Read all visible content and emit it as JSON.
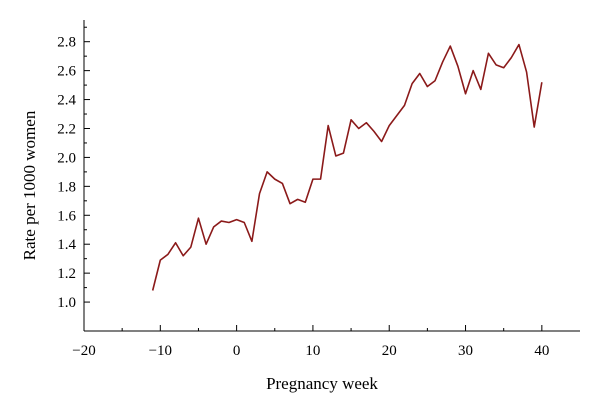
{
  "chart_data": {
    "type": "line",
    "title": "",
    "xlabel": "Pregnancy week",
    "ylabel": "Rate per 1000 women",
    "xlim": [
      -20,
      45
    ],
    "ylim": [
      0.8,
      2.95
    ],
    "x_ticks": [
      -20,
      -10,
      0,
      10,
      20,
      30,
      40
    ],
    "x_tick_labels": [
      "−20",
      "−10",
      "0",
      "10",
      "20",
      "30",
      "40"
    ],
    "y_ticks": [
      1.0,
      1.2,
      1.4,
      1.6,
      1.8,
      2.0,
      2.2,
      2.4,
      2.6,
      2.8
    ],
    "y_tick_labels": [
      "1.0",
      "1.2",
      "1.4",
      "1.6",
      "1.8",
      "2.0",
      "2.2",
      "2.4",
      "2.6",
      "2.8"
    ],
    "grid": false,
    "series": [
      {
        "color": "#8b1a1a",
        "x": [
          -11,
          -10,
          -9,
          -8,
          -7,
          -6,
          -5,
          -4,
          -3,
          -2,
          -1,
          0,
          1,
          2,
          3,
          4,
          5,
          6,
          7,
          8,
          9,
          10,
          11,
          12,
          13,
          14,
          15,
          16,
          17,
          18,
          19,
          20,
          21,
          22,
          23,
          24,
          25,
          26,
          27,
          28,
          29,
          30,
          31,
          32,
          33,
          34,
          35,
          36,
          37,
          38,
          39,
          40
        ],
        "y": [
          1.08,
          1.29,
          1.33,
          1.41,
          1.32,
          1.38,
          1.58,
          1.4,
          1.52,
          1.56,
          1.55,
          1.57,
          1.55,
          1.42,
          1.75,
          1.9,
          1.85,
          1.82,
          1.68,
          1.71,
          1.69,
          1.85,
          1.85,
          2.22,
          2.01,
          2.03,
          2.26,
          2.2,
          2.24,
          2.18,
          2.11,
          2.22,
          2.29,
          2.36,
          2.51,
          2.58,
          2.49,
          2.53,
          2.66,
          2.77,
          2.63,
          2.44,
          2.6,
          2.47,
          2.72,
          2.64,
          2.62,
          2.69,
          2.78,
          2.59,
          2.21,
          2.52
        ]
      }
    ]
  }
}
